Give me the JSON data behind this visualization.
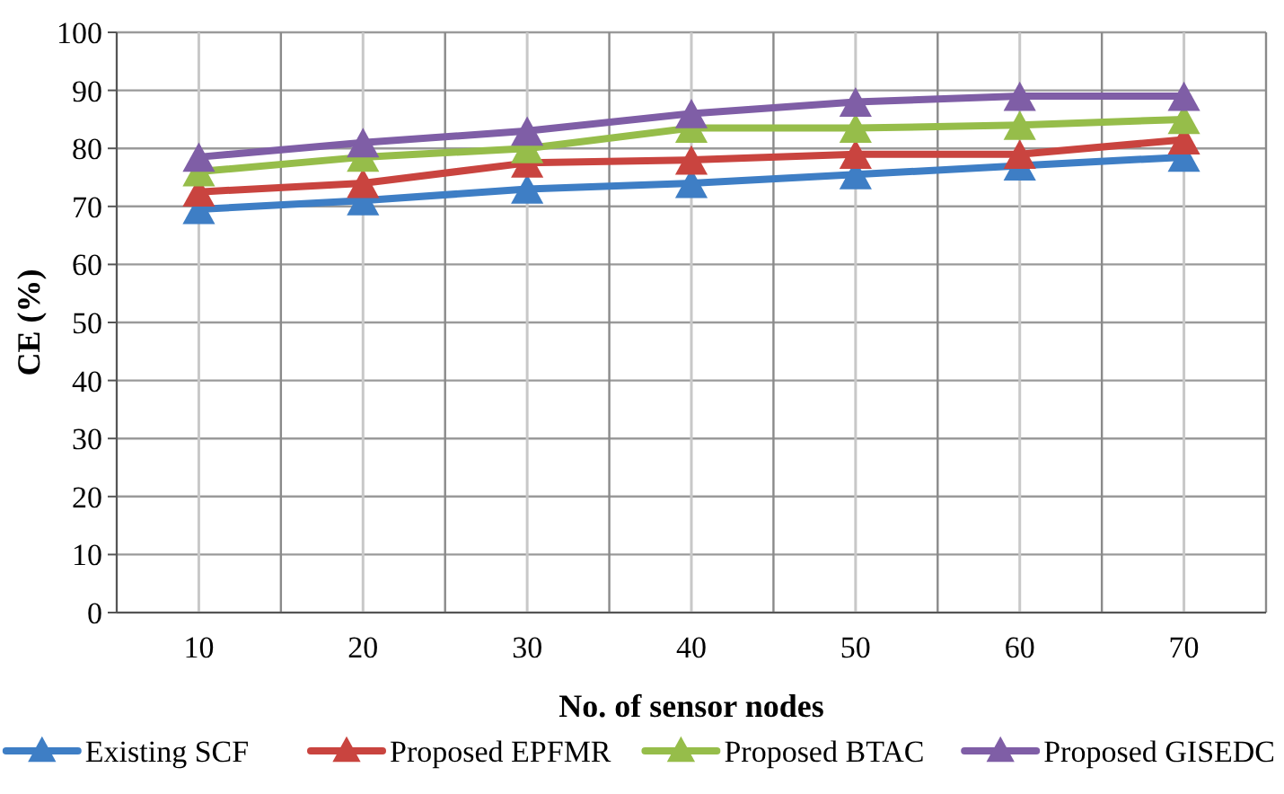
{
  "chart_data": {
    "type": "line",
    "xlabel": "No. of sensor nodes",
    "ylabel": "CE (%)",
    "categories": [
      "10",
      "20",
      "30",
      "40",
      "50",
      "60",
      "70"
    ],
    "ylim": [
      0,
      100
    ],
    "yticks": [
      0,
      10,
      20,
      30,
      40,
      50,
      60,
      70,
      80,
      90,
      100
    ],
    "grid": true,
    "legend": "bottom",
    "marker": "triangle",
    "line_style": "solid",
    "series": [
      {
        "name": "Existing SCF",
        "color": "#3e7ec5",
        "values": [
          69.5,
          71,
          73,
          74,
          75.5,
          77,
          78.5
        ]
      },
      {
        "name": "Proposed EPFMR",
        "color": "#c9443f",
        "values": [
          72.5,
          74,
          77.5,
          78,
          79,
          79,
          81.5
        ]
      },
      {
        "name": "Proposed BTAC",
        "color": "#96bd4a",
        "values": [
          76,
          78.5,
          80,
          83.5,
          83.5,
          84,
          85
        ]
      },
      {
        "name": "Proposed GISEDC",
        "color": "#7f5ea6",
        "values": [
          78.5,
          81,
          83,
          86,
          88,
          89,
          89
        ]
      }
    ]
  }
}
